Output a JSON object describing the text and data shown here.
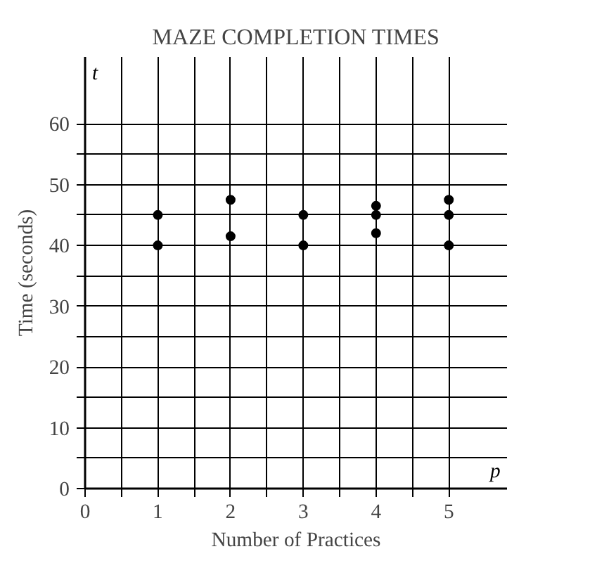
{
  "chart_data": {
    "type": "scatter",
    "title": "MAZE COMPLETION TIMES",
    "xlabel": "Number of Practices",
    "ylabel": "Time (seconds)",
    "annotations": [
      "t",
      "p"
    ],
    "series": [
      {
        "color": "#000000",
        "x": [
          1,
          1,
          2,
          2,
          3,
          3,
          4,
          4,
          4,
          5,
          5,
          5
        ],
        "values": [
          45,
          40,
          47.5,
          41.5,
          45,
          40,
          46.5,
          45,
          42,
          47.5,
          45,
          40
        ]
      }
    ],
    "marker": "circle",
    "grid": true,
    "xlim": [
      0,
      5.8
    ],
    "ylim": [
      0,
      71
    ],
    "xticks": [
      0,
      {
        "value": 0.5,
        "label": null
      },
      1,
      {
        "value": 1.5,
        "label": null
      },
      2,
      {
        "value": 2.5,
        "label": null
      },
      3,
      {
        "value": 3.5,
        "label": null
      },
      4,
      {
        "value": 4.5,
        "label": null
      },
      5
    ],
    "yticks": [
      0,
      {
        "value": 5,
        "label": null
      },
      10,
      {
        "value": 15,
        "label": null
      },
      20,
      {
        "value": 25,
        "label": null
      },
      30,
      {
        "value": 35,
        "label": null
      },
      40,
      {
        "value": 45,
        "label": null
      },
      50,
      {
        "value": 55,
        "label": null
      },
      60
    ]
  }
}
